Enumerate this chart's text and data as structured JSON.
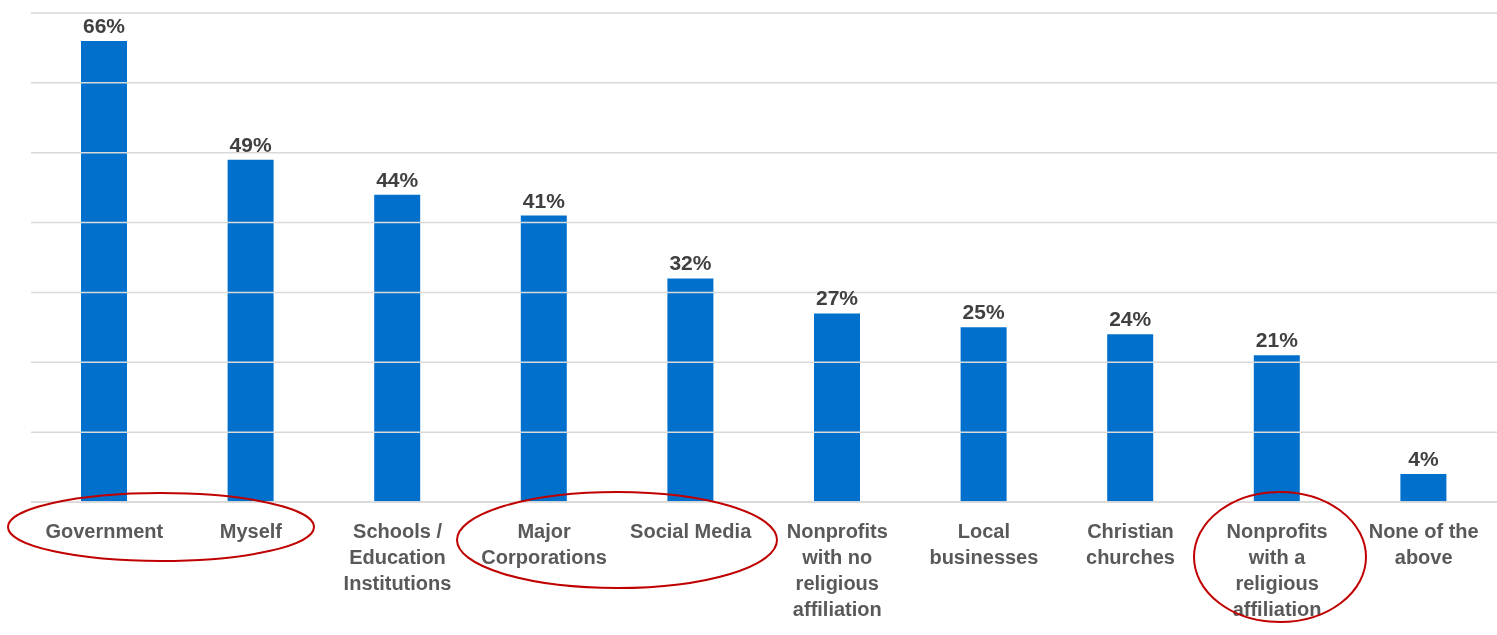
{
  "chart_data": {
    "type": "bar",
    "categories": [
      "Government",
      "Myself",
      "Schools / Education Institutions",
      "Major Corporations",
      "Social Media",
      "Nonprofits with no religious affiliation",
      "Local businesses",
      "Christian churches",
      "Nonprofits with a religious affiliation",
      "None of the above"
    ],
    "values": [
      66,
      49,
      44,
      41,
      32,
      27,
      25,
      24,
      21,
      4
    ],
    "color": "#0070cc",
    "data_labels": true,
    "value_labels": [
      "66%",
      "49%",
      "44%",
      "41%",
      "32%",
      "27%",
      "25%",
      "24%",
      "21%",
      "4%"
    ],
    "ylim": [
      0,
      70
    ],
    "yticks": [
      {
        "value": 0,
        "label": null
      },
      {
        "value": 10,
        "label": null
      },
      {
        "value": 20,
        "label": null
      },
      {
        "value": 30,
        "label": null
      },
      {
        "value": 40,
        "label": null
      },
      {
        "value": 50,
        "label": null
      },
      {
        "value": 60,
        "label": null
      },
      {
        "value": 70,
        "label": null
      }
    ],
    "grid": "y",
    "tick_labels": "x",
    "legend": false
  }
}
